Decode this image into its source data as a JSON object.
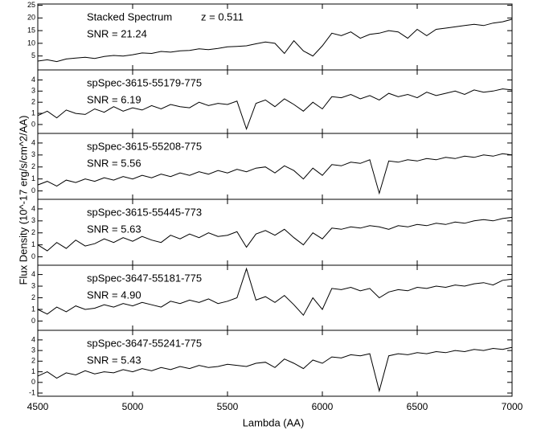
{
  "xlabel": "Lambda (AA)",
  "ylabel": "Flux Density (10^-17 erg/s/cm^2/AA)",
  "chart_data": [
    {
      "type": "line",
      "title": "Stacked Spectrum",
      "annotations": [
        "z = 0.511",
        "SNR = 21.24"
      ],
      "color": "#000000",
      "x": [
        4500,
        4550,
        4600,
        4650,
        4700,
        4750,
        4800,
        4850,
        4900,
        4950,
        5000,
        5050,
        5100,
        5150,
        5200,
        5250,
        5300,
        5350,
        5400,
        5450,
        5500,
        5550,
        5600,
        5650,
        5700,
        5750,
        5800,
        5850,
        5900,
        5950,
        6000,
        6050,
        6100,
        6150,
        6200,
        6250,
        6300,
        6350,
        6400,
        6450,
        6500,
        6550,
        6600,
        6650,
        6700,
        6750,
        6800,
        6850,
        6900,
        6950,
        7000
      ],
      "values": [
        3,
        3.5,
        2.8,
        3.8,
        4.2,
        4.5,
        4,
        4.8,
        5.2,
        5,
        5.5,
        6.2,
        6,
        6.8,
        6.5,
        7,
        7.2,
        7.8,
        7.5,
        8,
        8.6,
        8.8,
        9,
        9.8,
        10.5,
        10,
        6,
        11,
        7,
        5,
        9,
        14,
        13,
        14.5,
        12,
        13.5,
        14,
        15,
        14.5,
        12,
        15.5,
        13,
        15.5,
        16,
        16.5,
        17,
        17.5,
        17,
        18,
        18.5,
        19.5
      ],
      "xlim": [
        4500,
        7000
      ],
      "xticks": [
        4500,
        5000,
        5500,
        6000,
        6500,
        7000
      ],
      "ylim": [
        -0.5,
        25.5
      ],
      "yticks": [
        5,
        10,
        15,
        20,
        25
      ]
    },
    {
      "type": "line",
      "title": "spSpec-3615-55179-775",
      "annotations": [
        "SNR =  6.19"
      ],
      "color": "#000000",
      "x": [
        4500,
        4550,
        4600,
        4650,
        4700,
        4750,
        4800,
        4850,
        4900,
        4950,
        5000,
        5050,
        5100,
        5150,
        5200,
        5250,
        5300,
        5350,
        5400,
        5450,
        5500,
        5550,
        5600,
        5650,
        5700,
        5750,
        5800,
        5850,
        5900,
        5950,
        6000,
        6050,
        6100,
        6150,
        6200,
        6250,
        6300,
        6350,
        6400,
        6450,
        6500,
        6550,
        6600,
        6650,
        6700,
        6750,
        6800,
        6850,
        6900,
        6950,
        7000
      ],
      "values": [
        0.8,
        1.2,
        0.6,
        1.3,
        1.0,
        0.9,
        1.4,
        1.1,
        1.6,
        1.2,
        1.5,
        1.3,
        1.7,
        1.4,
        1.8,
        1.6,
        1.5,
        2.0,
        1.7,
        1.9,
        1.8,
        2.1,
        -0.4,
        1.9,
        2.2,
        1.6,
        2.3,
        1.8,
        1.2,
        2.0,
        1.4,
        2.5,
        2.4,
        2.7,
        2.3,
        2.6,
        2.2,
        2.8,
        2.5,
        2.7,
        2.4,
        2.9,
        2.6,
        2.8,
        3.0,
        2.7,
        3.1,
        2.9,
        3.0,
        3.2,
        3.1
      ],
      "xlim": [
        4500,
        7000
      ],
      "xticks": [
        4500,
        5000,
        5500,
        6000,
        6500,
        7000
      ],
      "ylim": [
        -0.8,
        4.9
      ],
      "yticks": [
        0,
        1,
        2,
        3,
        4
      ]
    },
    {
      "type": "line",
      "title": "spSpec-3615-55208-775",
      "annotations": [
        "SNR =  5.56"
      ],
      "color": "#000000",
      "x": [
        4500,
        4550,
        4600,
        4650,
        4700,
        4750,
        4800,
        4850,
        4900,
        4950,
        5000,
        5050,
        5100,
        5150,
        5200,
        5250,
        5300,
        5350,
        5400,
        5450,
        5500,
        5550,
        5600,
        5650,
        5700,
        5750,
        5800,
        5850,
        5900,
        5950,
        6000,
        6050,
        6100,
        6150,
        6200,
        6250,
        6300,
        6350,
        6400,
        6450,
        6500,
        6550,
        6600,
        6650,
        6700,
        6750,
        6800,
        6850,
        6900,
        6950,
        7000
      ],
      "values": [
        0.5,
        0.8,
        0.4,
        0.9,
        0.7,
        1.0,
        0.8,
        1.1,
        0.9,
        1.2,
        1.0,
        1.3,
        1.1,
        1.4,
        1.2,
        1.5,
        1.3,
        1.6,
        1.4,
        1.7,
        1.5,
        1.8,
        1.6,
        1.9,
        2.0,
        1.5,
        2.1,
        1.7,
        1.0,
        1.9,
        1.3,
        2.2,
        2.1,
        2.4,
        2.3,
        2.6,
        -0.2,
        2.5,
        2.4,
        2.6,
        2.5,
        2.7,
        2.6,
        2.8,
        2.7,
        2.9,
        2.8,
        3.0,
        2.9,
        3.1,
        3.0
      ],
      "xlim": [
        4500,
        7000
      ],
      "xticks": [
        4500,
        5000,
        5500,
        6000,
        6500,
        7000
      ],
      "ylim": [
        -0.7,
        4.8
      ],
      "yticks": [
        0,
        1,
        2,
        3,
        4
      ]
    },
    {
      "type": "line",
      "title": "spSpec-3615-55445-773",
      "annotations": [
        "SNR =  5.63"
      ],
      "color": "#000000",
      "x": [
        4500,
        4550,
        4600,
        4650,
        4700,
        4750,
        4800,
        4850,
        4900,
        4950,
        5000,
        5050,
        5100,
        5150,
        5200,
        5250,
        5300,
        5350,
        5400,
        5450,
        5500,
        5550,
        5600,
        5650,
        5700,
        5750,
        5800,
        5850,
        5900,
        5950,
        6000,
        6050,
        6100,
        6150,
        6200,
        6250,
        6300,
        6350,
        6400,
        6450,
        6500,
        6550,
        6600,
        6650,
        6700,
        6750,
        6800,
        6850,
        6900,
        6950,
        7000
      ],
      "values": [
        1.0,
        0.5,
        1.2,
        0.7,
        1.4,
        0.9,
        1.1,
        1.5,
        1.2,
        1.6,
        1.3,
        1.7,
        1.4,
        1.2,
        1.8,
        1.5,
        1.9,
        1.6,
        2.0,
        1.7,
        1.8,
        2.1,
        0.8,
        1.9,
        2.2,
        1.8,
        2.3,
        1.6,
        1.0,
        2.0,
        1.5,
        2.4,
        2.3,
        2.5,
        2.4,
        2.6,
        2.5,
        2.3,
        2.6,
        2.5,
        2.7,
        2.6,
        2.8,
        2.7,
        2.9,
        2.8,
        3.0,
        3.1,
        3.0,
        3.2,
        3.3
      ],
      "xlim": [
        4500,
        7000
      ],
      "xticks": [
        4500,
        5000,
        5500,
        6000,
        6500,
        7000
      ],
      "ylim": [
        -0.7,
        4.8
      ],
      "yticks": [
        0,
        1,
        2,
        3,
        4
      ]
    },
    {
      "type": "line",
      "title": "spSpec-3647-55181-775",
      "annotations": [
        "SNR =  4.90"
      ],
      "color": "#000000",
      "x": [
        4500,
        4550,
        4600,
        4650,
        4700,
        4750,
        4800,
        4850,
        4900,
        4950,
        5000,
        5050,
        5100,
        5150,
        5200,
        5250,
        5300,
        5350,
        5400,
        5450,
        5500,
        5550,
        5600,
        5650,
        5700,
        5750,
        5800,
        5850,
        5900,
        5950,
        6000,
        6050,
        6100,
        6150,
        6200,
        6250,
        6300,
        6350,
        6400,
        6450,
        6500,
        6550,
        6600,
        6650,
        6700,
        6750,
        6800,
        6850,
        6900,
        6950,
        7000
      ],
      "values": [
        1.0,
        0.6,
        1.2,
        0.8,
        1.3,
        1.0,
        1.1,
        1.4,
        1.2,
        1.5,
        1.3,
        1.6,
        1.4,
        1.2,
        1.7,
        1.5,
        1.8,
        1.6,
        1.9,
        1.5,
        1.7,
        2.0,
        4.5,
        1.8,
        2.1,
        1.6,
        2.2,
        1.4,
        0.5,
        2.0,
        1.0,
        2.8,
        2.7,
        2.9,
        2.6,
        2.8,
        2.0,
        2.5,
        2.7,
        2.6,
        2.9,
        2.8,
        3.0,
        2.9,
        3.1,
        3.0,
        3.2,
        3.3,
        3.1,
        3.5,
        3.6
      ],
      "xlim": [
        4500,
        7000
      ],
      "xticks": [
        4500,
        5000,
        5500,
        6000,
        6500,
        7000
      ],
      "ylim": [
        -0.8,
        4.8
      ],
      "yticks": [
        0,
        1,
        2,
        3,
        4
      ]
    },
    {
      "type": "line",
      "title": "spSpec-3647-55241-775",
      "annotations": [
        "SNR =  5.43"
      ],
      "color": "#000000",
      "x": [
        4500,
        4550,
        4600,
        4650,
        4700,
        4750,
        4800,
        4850,
        4900,
        4950,
        5000,
        5050,
        5100,
        5150,
        5200,
        5250,
        5300,
        5350,
        5400,
        5450,
        5500,
        5550,
        5600,
        5650,
        5700,
        5750,
        5800,
        5850,
        5900,
        5950,
        6000,
        6050,
        6100,
        6150,
        6200,
        6250,
        6300,
        6350,
        6400,
        6450,
        6500,
        6550,
        6600,
        6650,
        6700,
        6750,
        6800,
        6850,
        6900,
        6950,
        7000
      ],
      "values": [
        0.6,
        1.0,
        0.4,
        0.9,
        0.7,
        1.1,
        0.8,
        1.0,
        0.9,
        1.2,
        1.0,
        1.3,
        1.1,
        1.4,
        1.2,
        1.5,
        1.3,
        1.6,
        1.4,
        1.5,
        1.7,
        1.6,
        1.5,
        1.8,
        1.9,
        1.4,
        2.2,
        1.8,
        1.3,
        2.1,
        1.8,
        2.4,
        2.3,
        2.6,
        2.5,
        2.7,
        -0.8,
        2.5,
        2.7,
        2.6,
        2.8,
        2.7,
        2.9,
        2.8,
        3.0,
        2.9,
        3.1,
        3.0,
        3.2,
        3.1,
        3.3
      ],
      "xlim": [
        4500,
        7000
      ],
      "xticks": [
        4500,
        5000,
        5500,
        6000,
        6500,
        7000
      ],
      "ylim": [
        -1.3,
        4.9
      ],
      "yticks": [
        -1,
        0,
        1,
        2,
        3,
        4
      ]
    }
  ]
}
